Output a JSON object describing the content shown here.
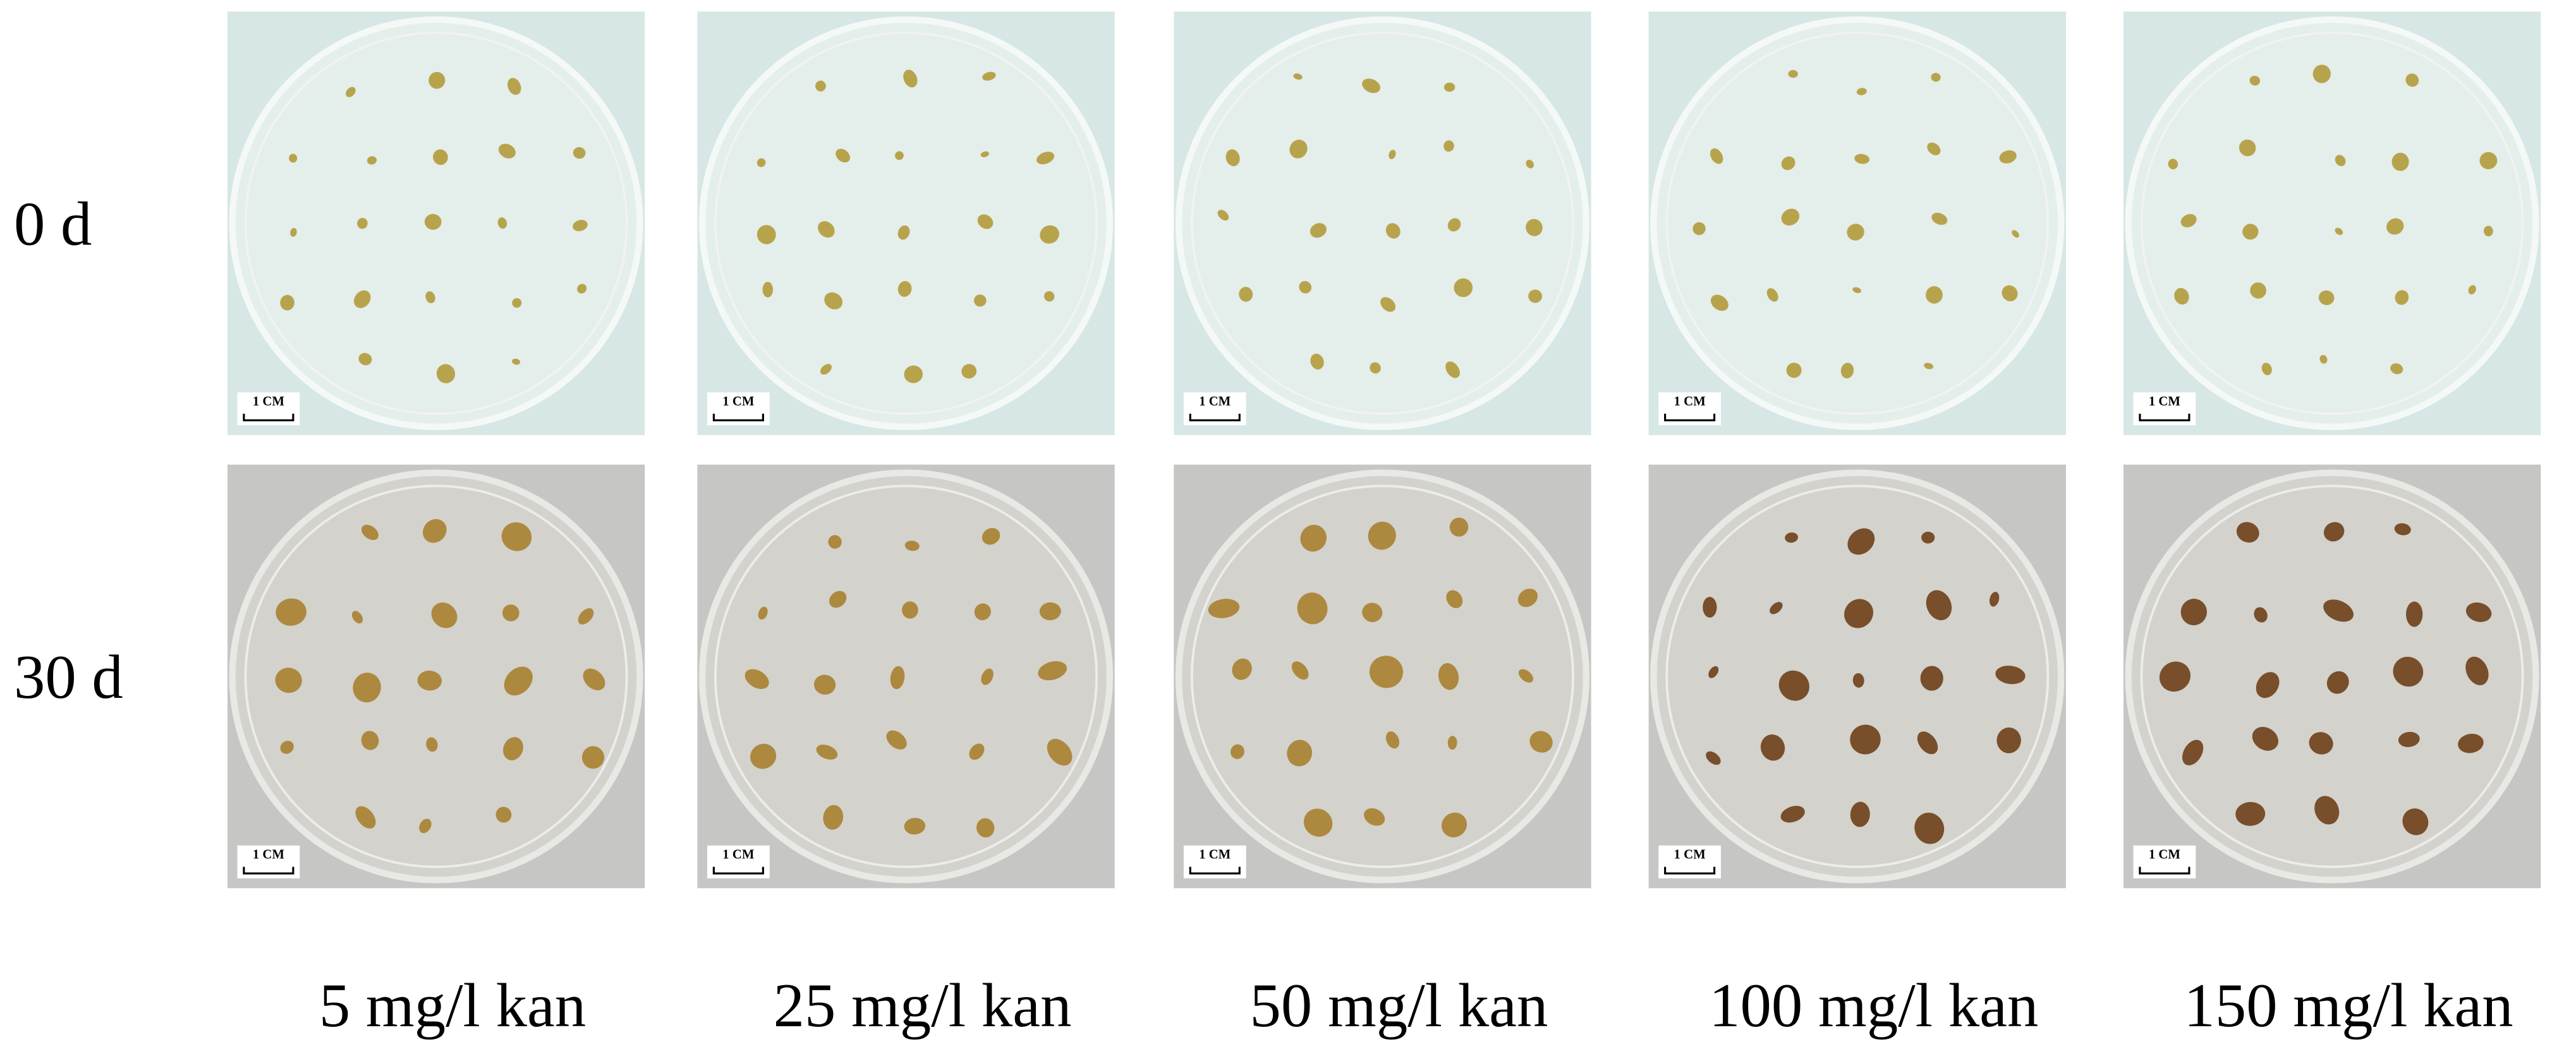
{
  "rows": [
    "0 d",
    "30 d"
  ],
  "columns": [
    "5 mg/l kan",
    "25 mg/l kan",
    "50 mg/l kan",
    "100 mg/l kan",
    "150 mg/l kan"
  ],
  "scale_bar": "1 CM"
}
